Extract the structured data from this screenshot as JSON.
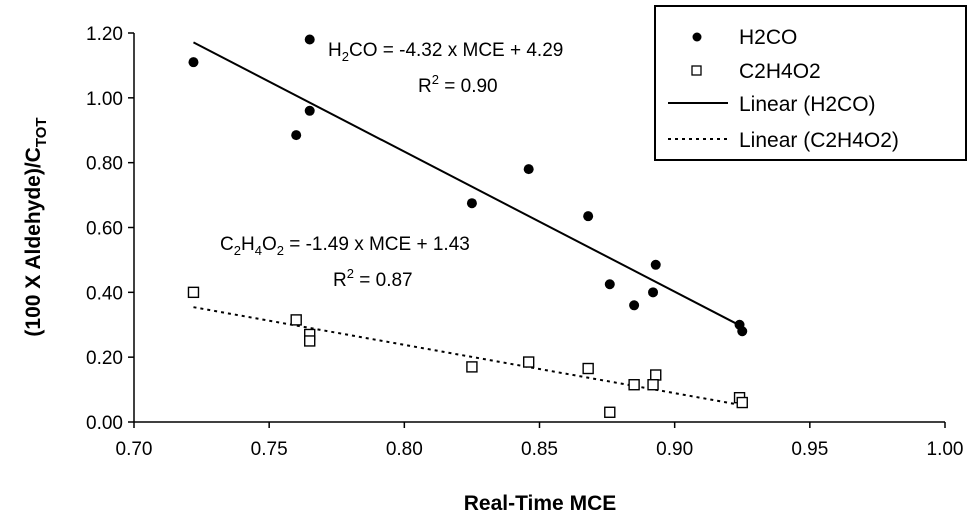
{
  "chart_data": {
    "type": "scatter",
    "xlabel": "Real-Time MCE",
    "ylabel": "(100 X Aldehyde)/C",
    "ylabel_sub": "TOT",
    "xlim": [
      0.7,
      1.0
    ],
    "ylim": [
      0.0,
      1.2
    ],
    "x_ticks": [
      "0.70",
      "0.75",
      "0.80",
      "0.85",
      "0.90",
      "0.95",
      "1.00"
    ],
    "y_ticks": [
      "0.00",
      "0.20",
      "0.40",
      "0.60",
      "0.80",
      "1.00",
      "1.20"
    ],
    "grid": false,
    "legend_position": "top-right",
    "series": [
      {
        "name": "H2CO",
        "marker": "filled-circle",
        "color": "#000000",
        "points": [
          [
            0.722,
            1.11
          ],
          [
            0.765,
            1.18
          ],
          [
            0.765,
            0.96
          ],
          [
            0.76,
            0.885
          ],
          [
            0.825,
            0.675
          ],
          [
            0.846,
            0.78
          ],
          [
            0.868,
            0.635
          ],
          [
            0.876,
            0.425
          ],
          [
            0.885,
            0.36
          ],
          [
            0.893,
            0.485
          ],
          [
            0.892,
            0.4
          ],
          [
            0.924,
            0.3
          ],
          [
            0.925,
            0.28
          ]
        ]
      },
      {
        "name": "C2H4O2",
        "marker": "open-square",
        "color": "#000000",
        "points": [
          [
            0.722,
            0.4
          ],
          [
            0.76,
            0.315
          ],
          [
            0.765,
            0.27
          ],
          [
            0.765,
            0.25
          ],
          [
            0.825,
            0.17
          ],
          [
            0.846,
            0.185
          ],
          [
            0.868,
            0.165
          ],
          [
            0.876,
            0.03
          ],
          [
            0.885,
            0.115
          ],
          [
            0.893,
            0.145
          ],
          [
            0.892,
            0.115
          ],
          [
            0.924,
            0.075
          ],
          [
            0.925,
            0.06
          ]
        ]
      }
    ],
    "trendlines": [
      {
        "name": "Linear (H2CO)",
        "style": "solid",
        "slope": -4.32,
        "intercept": 4.29,
        "x_range": [
          0.722,
          0.925
        ]
      },
      {
        "name": "Linear (C2H4O2)",
        "style": "dotted",
        "slope": -1.49,
        "intercept": 1.43,
        "x_range": [
          0.722,
          0.925
        ]
      }
    ],
    "annotations": [
      {
        "lhs_main": "H",
        "lhs_sub1": "2",
        "lhs_mid": "CO",
        "rhs": " = -4.32 x MCE + 4.29",
        "r2": " = 0.90"
      },
      {
        "lhs_main": "C",
        "lhs_sub1": "2",
        "lhs_mid": "H",
        "lhs_sub2": "4",
        "lhs_end": "O",
        "lhs_sub3": "2",
        "rhs": " = -1.49 x MCE + 1.43",
        "r2": " = 0.87"
      }
    ]
  }
}
